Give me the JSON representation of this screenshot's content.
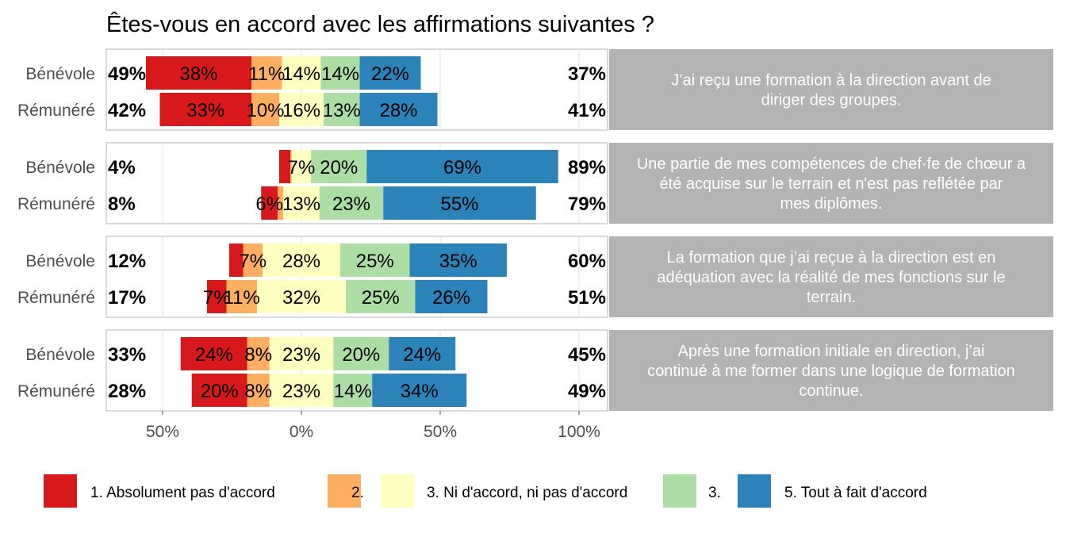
{
  "title": "Êtes-vous en accord avec les affirmations suivantes ?",
  "chart_data": {
    "type": "bar",
    "subtype": "diverging-stacked-likert",
    "title": "Êtes-vous en accord avec les affirmations suivantes ?",
    "xlim": [
      -72,
      106
    ],
    "x_ticks": [
      -50,
      0,
      50,
      100
    ],
    "x_tick_labels": [
      "50%",
      "0%",
      "50%",
      "100%"
    ],
    "grid": true,
    "legend_position": "bottom",
    "levels": [
      {
        "label": "1. Absolument pas d'accord",
        "color": "#d7191c"
      },
      {
        "label": "2.",
        "color": "#fdae61"
      },
      {
        "label": "3. Ni d'accord, ni pas d'accord",
        "color": "#ffffbf"
      },
      {
        "label": "3.",
        "color": "#abdda4"
      },
      {
        "label": "5. Tout à fait d'accord",
        "color": "#2b83ba"
      }
    ],
    "panels": [
      {
        "question": "J’ai reçu une formation à la direction avant de diriger des groupes.",
        "rows": [
          {
            "group": "Bénévole",
            "values": [
              38,
              11,
              14,
              14,
              22
            ],
            "labels": [
              "38%",
              "11%",
              "14%",
              "14%",
              "22%"
            ],
            "low_total": "49%",
            "high_total": "37%"
          },
          {
            "group": "Rémunéré",
            "values": [
              33,
              10,
              16,
              13,
              28
            ],
            "labels": [
              "33%",
              "10%",
              "16%",
              "13%",
              "28%"
            ],
            "low_total": "42%",
            "high_total": "41%"
          }
        ]
      },
      {
        "question": "Une partie de mes compétences de chef·fe de chœur a été acquise sur le terrain et n'est pas reflétée par mes diplômes.",
        "rows": [
          {
            "group": "Bénévole",
            "values": [
              4,
              0.5,
              7,
              20,
              69
            ],
            "labels": [
              "",
              "",
              "7%",
              "20%",
              "69%"
            ],
            "low_total": "4%",
            "high_total": "89%"
          },
          {
            "group": "Rémunéré",
            "values": [
              6,
              2,
              13,
              23,
              55
            ],
            "labels": [
              "6%",
              "",
              "13%",
              "23%",
              "55%"
            ],
            "low_total": "8%",
            "high_total": "79%"
          }
        ]
      },
      {
        "question": "La formation que j’ai reçue à la direction est en adéquation avec la réalité de mes fonctions sur le terrain.",
        "rows": [
          {
            "group": "Bénévole",
            "values": [
              5,
              7,
              28,
              25,
              35
            ],
            "labels": [
              "",
              "7%",
              "28%",
              "25%",
              "35%"
            ],
            "low_total": "12%",
            "high_total": "60%"
          },
          {
            "group": "Rémunéré",
            "values": [
              7,
              11,
              32,
              25,
              26
            ],
            "labels": [
              "7%",
              "11%",
              "32%",
              "25%",
              "26%"
            ],
            "low_total": "17%",
            "high_total": "51%"
          }
        ]
      },
      {
        "question": "Après une formation initiale en direction, j’ai continué à me former dans une logique de formation continue.",
        "rows": [
          {
            "group": "Bénévole",
            "values": [
              24,
              8,
              23,
              20,
              24
            ],
            "labels": [
              "24%",
              "8%",
              "23%",
              "20%",
              "24%"
            ],
            "low_total": "33%",
            "high_total": "45%"
          },
          {
            "group": "Rémunéré",
            "values": [
              20,
              8,
              23,
              14,
              34
            ],
            "labels": [
              "20%",
              "8%",
              "23%",
              "14%",
              "34%"
            ],
            "low_total": "28%",
            "high_total": "49%"
          }
        ]
      }
    ]
  }
}
